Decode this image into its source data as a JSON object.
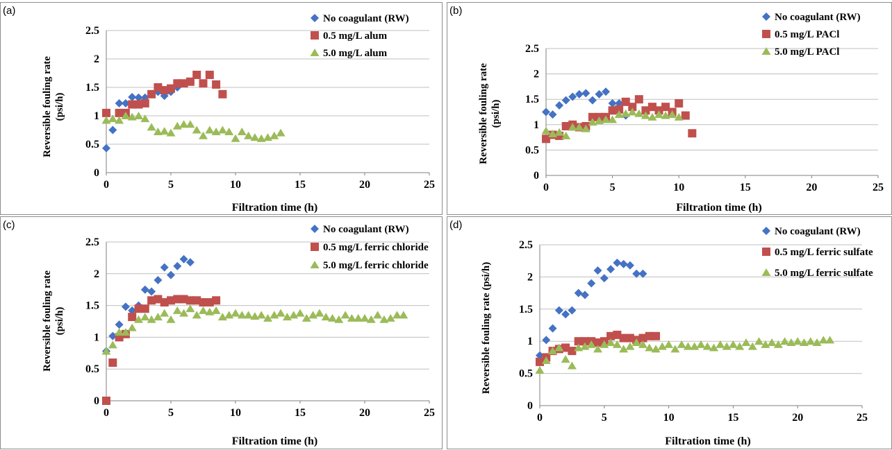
{
  "figure": {
    "panels": [
      {
        "id": "a",
        "label": "(a)"
      },
      {
        "id": "b",
        "label": "(b)"
      },
      {
        "id": "c",
        "label": "(c)"
      },
      {
        "id": "d",
        "label": "(d)"
      }
    ]
  },
  "chart_data": [
    {
      "panel": "(a)",
      "type": "scatter",
      "xlabel": "Filtration time (h)",
      "ylabel": [
        "Reversible fouling rate",
        "(psi/h)"
      ],
      "xlim": [
        0,
        25
      ],
      "ylim": [
        0,
        2.5
      ],
      "xticks": [
        "0",
        "5",
        "10",
        "15",
        "20",
        "25"
      ],
      "yticks": [
        "0",
        "0.5",
        "1",
        "1.5",
        "2",
        "2.5"
      ],
      "grid": "horizontal",
      "legend_position": "top-right",
      "series": [
        {
          "name": "No coagulant (RW)",
          "color": "#4472c4",
          "marker": "diamond",
          "x": [
            0,
            0.5,
            1,
            1.5,
            2,
            2.5,
            3,
            3.5,
            4,
            4.5,
            5,
            5.5
          ],
          "y": [
            0.43,
            0.75,
            1.22,
            1.22,
            1.33,
            1.32,
            1.32,
            1.38,
            1.42,
            1.35,
            1.42,
            1.5
          ]
        },
        {
          "name": "0.5 mg/L alum",
          "color": "#c0504d",
          "marker": "square",
          "x": [
            0,
            1,
            1.5,
            2,
            2.5,
            3,
            3.5,
            4,
            4.5,
            5,
            5.5,
            6,
            6.5,
            7,
            7.5,
            8,
            8.5,
            9
          ],
          "y": [
            1.05,
            1.05,
            1.05,
            1.2,
            1.2,
            1.22,
            1.38,
            1.5,
            1.45,
            1.48,
            1.57,
            1.57,
            1.6,
            1.72,
            1.57,
            1.72,
            1.55,
            1.38
          ]
        },
        {
          "name": "5.0 mg/L alum",
          "color": "#9bbb59",
          "marker": "triangle",
          "x": [
            0,
            0.5,
            1,
            1.5,
            2,
            2.5,
            3,
            3.5,
            4,
            4.5,
            5,
            5.5,
            6,
            6.5,
            7,
            7.5,
            8,
            8.5,
            9,
            9.5,
            10,
            10.5,
            11,
            11.5,
            12,
            12.5,
            13,
            13.5
          ],
          "y": [
            0.92,
            0.95,
            0.92,
            1.0,
            0.98,
            1.0,
            0.95,
            0.8,
            0.72,
            0.73,
            0.7,
            0.82,
            0.85,
            0.85,
            0.75,
            0.65,
            0.75,
            0.72,
            0.75,
            0.72,
            0.6,
            0.72,
            0.65,
            0.62,
            0.6,
            0.62,
            0.65,
            0.7
          ]
        }
      ]
    },
    {
      "panel": "(b)",
      "type": "scatter",
      "xlabel": "Filtration time (h)",
      "ylabel": [
        "Reversible fouling rate",
        "(psi/h)"
      ],
      "xlim": [
        0,
        25
      ],
      "ylim": [
        0,
        2.5
      ],
      "xticks": [
        "0",
        "5",
        "10",
        "15",
        "20",
        "25"
      ],
      "yticks": [
        "0",
        "0.5",
        "1",
        "1.5",
        "2",
        "2.5"
      ],
      "grid": "horizontal",
      "legend_position": "top-right",
      "series": [
        {
          "name": "No coagulant (RW)",
          "color": "#4472c4",
          "marker": "diamond",
          "x": [
            0,
            0.5,
            1,
            1.5,
            2,
            2.5,
            3,
            3.5,
            4,
            4.5,
            5,
            5.5,
            6
          ],
          "y": [
            1.25,
            1.2,
            1.38,
            1.48,
            1.55,
            1.6,
            1.62,
            1.48,
            1.6,
            1.65,
            1.42,
            1.42,
            1.18
          ]
        },
        {
          "name": "0.5 mg/L PACl",
          "color": "#c0504d",
          "marker": "square",
          "x": [
            0,
            0.5,
            1,
            1.5,
            2,
            2.5,
            3,
            3.5,
            4,
            4.5,
            5,
            5.5,
            6,
            6.5,
            7,
            7.5,
            8,
            8.5,
            9,
            9.5,
            10,
            10.5,
            11
          ],
          "y": [
            0.72,
            0.8,
            0.78,
            0.97,
            1.0,
            0.95,
            0.97,
            1.15,
            1.15,
            1.15,
            1.28,
            1.3,
            1.45,
            1.35,
            1.5,
            1.28,
            1.35,
            1.28,
            1.35,
            1.25,
            1.42,
            1.18,
            0.83
          ]
        },
        {
          "name": "5.0 mg/L PACl",
          "color": "#9bbb59",
          "marker": "triangle",
          "x": [
            0,
            0.5,
            1,
            1.5,
            2,
            2.5,
            3,
            3.5,
            4,
            4.5,
            5,
            5.5,
            6,
            6.5,
            7,
            7.5,
            8,
            8.5,
            9,
            9.5,
            10
          ],
          "y": [
            0.88,
            0.82,
            0.85,
            0.78,
            0.95,
            0.95,
            0.92,
            1.05,
            1.08,
            1.1,
            1.1,
            1.2,
            1.22,
            1.25,
            1.22,
            1.18,
            1.15,
            1.2,
            1.18,
            1.2,
            1.15
          ]
        }
      ]
    },
    {
      "panel": "(c)",
      "type": "scatter",
      "xlabel": "Filtration time (h)",
      "ylabel": [
        "Reversible fouling rate",
        "(psi/h)"
      ],
      "xlim": [
        0,
        25
      ],
      "ylim": [
        0,
        2.5
      ],
      "xticks": [
        "0",
        "5",
        "10",
        "15",
        "20",
        "25"
      ],
      "yticks": [
        "0",
        "0.5",
        "1",
        "1.5",
        "2",
        "2.5"
      ],
      "grid": "horizontal",
      "legend_position": "top-right",
      "series": [
        {
          "name": "No coagulant (RW)",
          "color": "#4472c4",
          "marker": "diamond",
          "x": [
            0,
            0.5,
            1,
            1.5,
            2,
            2.5,
            3,
            3.5,
            4,
            4.5,
            5,
            5.5,
            6,
            6.5
          ],
          "y": [
            0.78,
            1.02,
            1.2,
            1.48,
            1.42,
            1.5,
            1.75,
            1.72,
            1.9,
            2.1,
            1.98,
            2.12,
            2.23,
            2.18
          ]
        },
        {
          "name": "0.5 mg/L ferric chloride",
          "color": "#c0504d",
          "marker": "square",
          "x": [
            0,
            0.5,
            1,
            1.5,
            2,
            2.5,
            3,
            3.5,
            4,
            4.5,
            5,
            5.5,
            6,
            6.5,
            7,
            7.5,
            8,
            8.5
          ],
          "y": [
            0,
            0.6,
            1.0,
            1.05,
            1.32,
            1.45,
            1.45,
            1.58,
            1.6,
            1.55,
            1.58,
            1.6,
            1.6,
            1.58,
            1.58,
            1.55,
            1.55,
            1.58
          ]
        },
        {
          "name": "5.0 mg/L ferric chloride",
          "color": "#9bbb59",
          "marker": "triangle",
          "x": [
            0,
            0.5,
            1,
            1.5,
            2,
            2.5,
            3,
            3.5,
            4,
            4.5,
            5,
            5.5,
            6,
            6.5,
            7,
            7.5,
            8,
            8.5,
            9,
            9.5,
            10,
            10.5,
            11,
            11.5,
            12,
            12.5,
            13,
            13.5,
            14,
            14.5,
            15,
            15.5,
            16,
            16.5,
            17,
            17.5,
            18,
            18.5,
            19,
            19.5,
            20,
            20.5,
            21,
            21.5,
            22,
            22.5,
            23
          ],
          "y": [
            0.78,
            0.88,
            1.08,
            1.08,
            1.15,
            1.28,
            1.32,
            1.28,
            1.32,
            1.38,
            1.28,
            1.42,
            1.38,
            1.45,
            1.35,
            1.42,
            1.4,
            1.42,
            1.32,
            1.35,
            1.38,
            1.35,
            1.35,
            1.33,
            1.35,
            1.3,
            1.35,
            1.38,
            1.32,
            1.35,
            1.38,
            1.3,
            1.35,
            1.38,
            1.32,
            1.3,
            1.28,
            1.35,
            1.3,
            1.3,
            1.3,
            1.28,
            1.35,
            1.28,
            1.3,
            1.35,
            1.35
          ]
        }
      ]
    },
    {
      "panel": "(d)",
      "type": "scatter",
      "xlabel": "Filtration time (h)",
      "ylabel": [
        "Reversible fouling rate (psi/h)"
      ],
      "xlim": [
        0,
        25
      ],
      "ylim": [
        0,
        2.5
      ],
      "xticks": [
        "0",
        "5",
        "10",
        "15",
        "20",
        "25"
      ],
      "yticks": [
        "0",
        "0.5",
        "1",
        "1.5",
        "2",
        "2.5"
      ],
      "grid": "horizontal",
      "legend_position": "top-right",
      "series": [
        {
          "name": "No coagulant (RW)",
          "color": "#4472c4",
          "marker": "diamond",
          "x": [
            0,
            0.5,
            1,
            1.5,
            2,
            2.5,
            3,
            3.5,
            4,
            4.5,
            5,
            5.5,
            6,
            6.5,
            7,
            7.5,
            8
          ],
          "y": [
            0.78,
            1.02,
            1.2,
            1.48,
            1.42,
            1.48,
            1.75,
            1.72,
            1.9,
            2.1,
            1.98,
            2.12,
            2.22,
            2.2,
            2.18,
            2.05,
            2.05
          ]
        },
        {
          "name": "0.5 mg/L ferric sulfate",
          "color": "#c0504d",
          "marker": "square",
          "x": [
            0,
            0.5,
            1,
            1.5,
            2,
            2.5,
            3,
            3.5,
            4,
            4.5,
            5,
            5.5,
            6,
            6.5,
            7,
            7.5,
            8,
            8.5,
            9
          ],
          "y": [
            0.68,
            0.75,
            0.85,
            0.88,
            0.9,
            0.85,
            1.0,
            1.0,
            1.0,
            0.98,
            1.0,
            1.08,
            1.1,
            1.05,
            1.05,
            1.02,
            1.05,
            1.08,
            1.08
          ]
        },
        {
          "name": "5.0 mg/L ferric sulfate",
          "color": "#9bbb59",
          "marker": "triangle",
          "x": [
            0,
            0.5,
            1,
            1.5,
            2,
            2.5,
            3,
            3.5,
            4,
            4.5,
            5,
            5.5,
            6,
            6.5,
            7,
            7.5,
            8,
            8.5,
            9,
            9.5,
            10,
            10.5,
            11,
            11.5,
            12,
            12.5,
            13,
            13.5,
            14,
            14.5,
            15,
            15.5,
            16,
            16.5,
            17,
            17.5,
            18,
            18.5,
            19,
            19.5,
            20,
            20.5,
            21,
            21.5,
            22,
            22.5
          ],
          "y": [
            0.55,
            0.7,
            0.85,
            0.9,
            0.72,
            0.62,
            0.9,
            0.92,
            0.95,
            0.88,
            0.95,
            0.98,
            0.95,
            0.88,
            0.92,
            0.98,
            0.95,
            0.9,
            0.88,
            0.92,
            0.95,
            0.88,
            0.95,
            0.92,
            0.92,
            0.95,
            0.92,
            0.9,
            0.95,
            0.92,
            0.95,
            0.92,
            0.98,
            0.92,
            1.0,
            0.95,
            0.98,
            0.95,
            1.0,
            0.98,
            1.0,
            0.98,
            1.0,
            0.98,
            1.02,
            1.02
          ]
        }
      ]
    }
  ]
}
